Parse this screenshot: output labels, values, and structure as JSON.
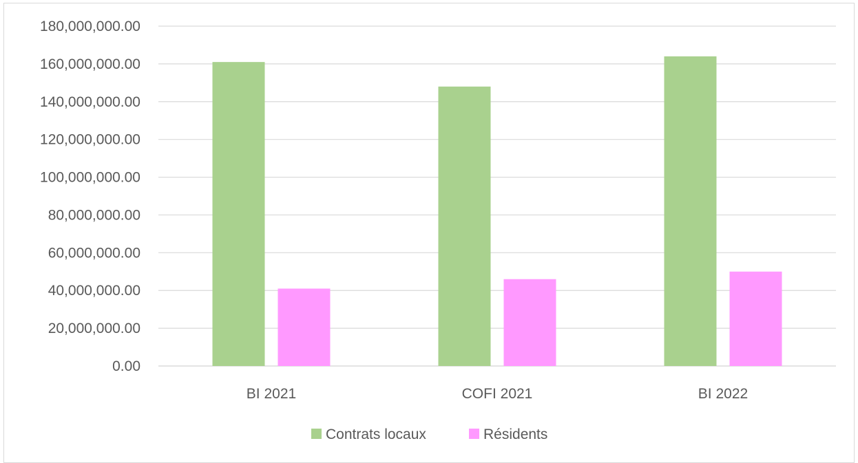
{
  "chart_data": {
    "type": "bar",
    "categories": [
      "BI 2021",
      "COFI 2021",
      "BI 2022"
    ],
    "series": [
      {
        "name": "Contrats locaux",
        "values": [
          161000000,
          148000000,
          164000000
        ],
        "color": "#a9d18e"
      },
      {
        "name": "Résidents",
        "values": [
          41000000,
          46000000,
          50000000
        ],
        "color": "#ff99ff"
      }
    ],
    "ylim": [
      0,
      180000000
    ],
    "yticks": [
      0,
      20000000,
      40000000,
      60000000,
      80000000,
      100000000,
      120000000,
      140000000,
      160000000,
      180000000
    ],
    "ytick_labels": [
      "0.00",
      "20,000,000.00",
      "40,000,000.00",
      "60,000,000.00",
      "80,000,000.00",
      "100,000,000.00",
      "120,000,000.00",
      "140,000,000.00",
      "160,000,000.00",
      "180,000,000.00"
    ],
    "grid": true,
    "legend": "bottom"
  }
}
